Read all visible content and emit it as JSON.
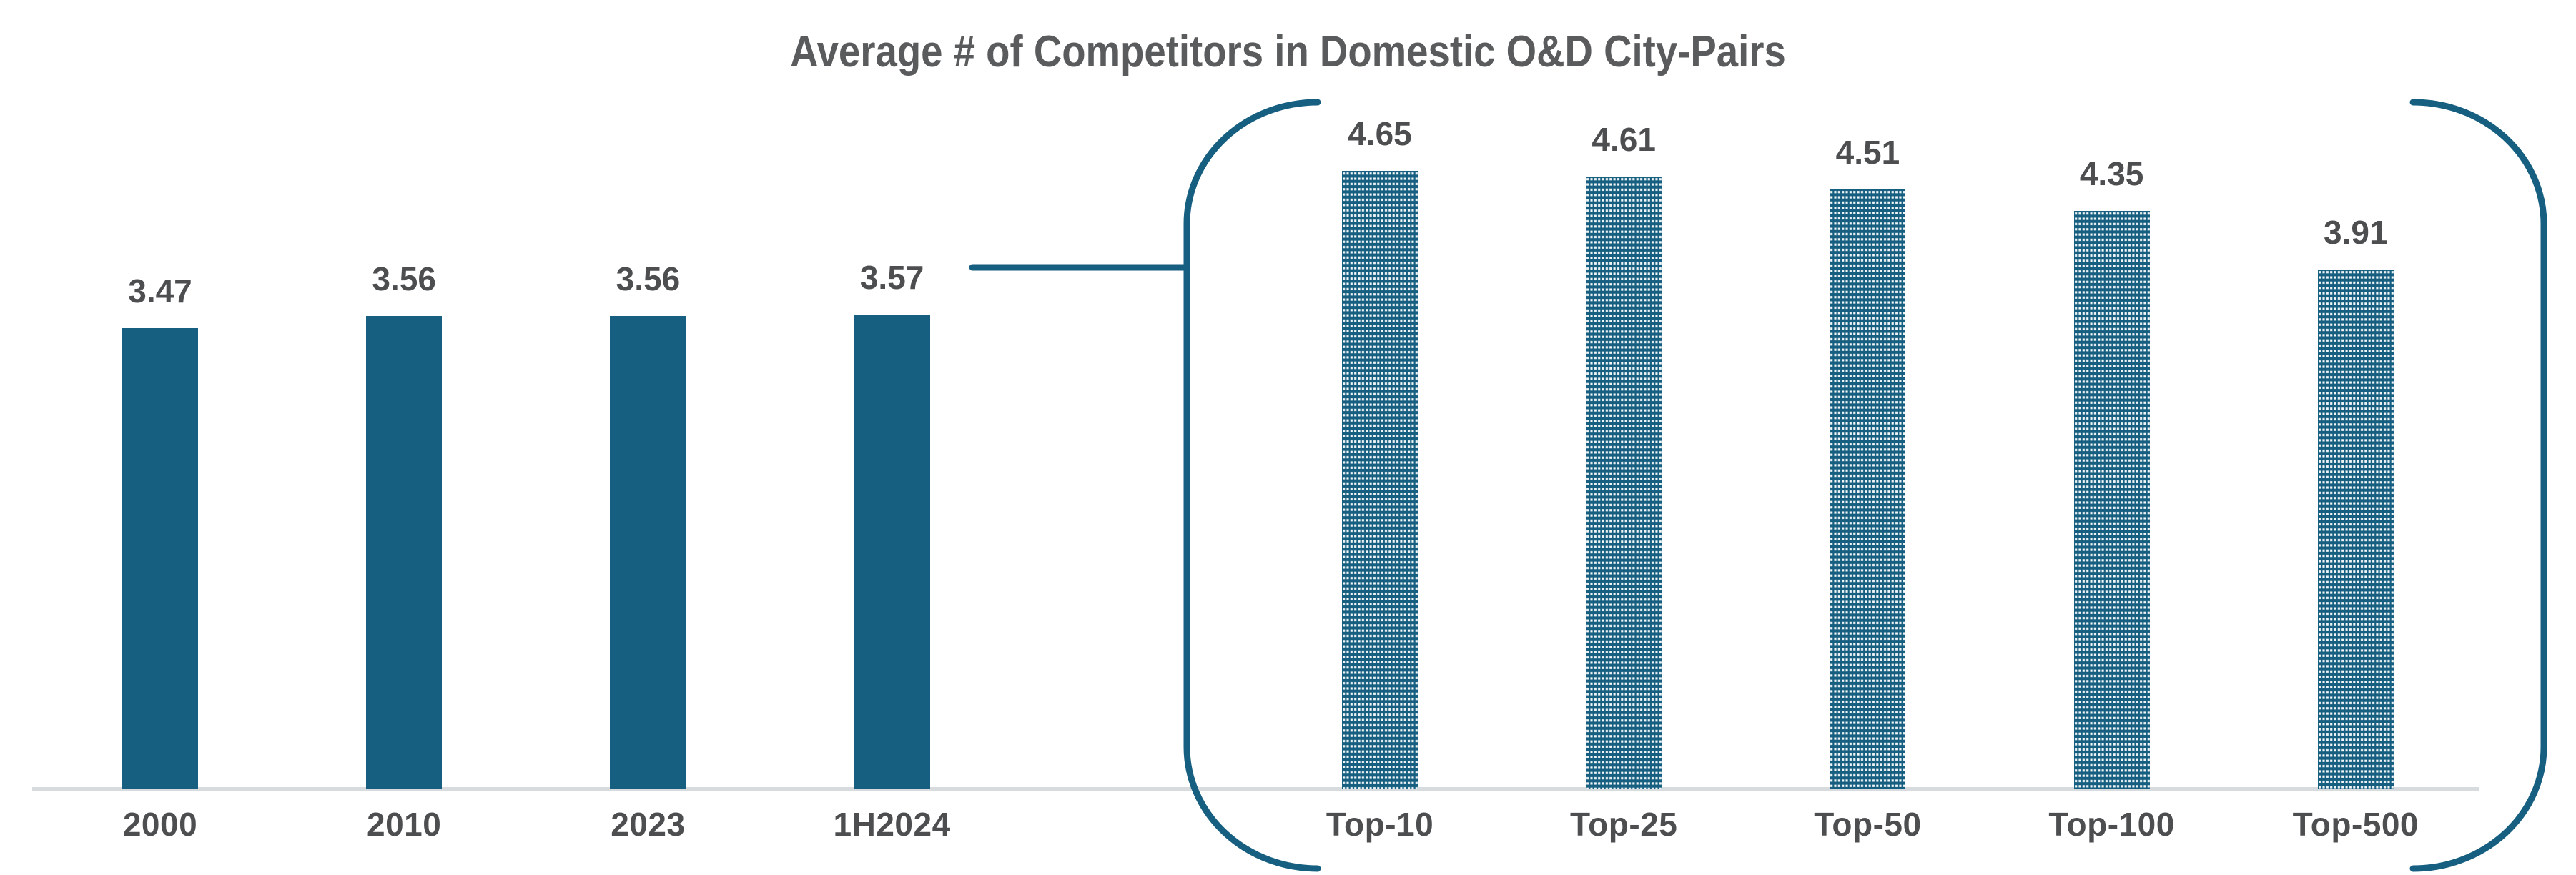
{
  "chart_data": {
    "type": "bar",
    "title": "Average # of Competitors in Domestic O&D City-Pairs",
    "bars": [
      {
        "label": "2000",
        "value": 3.47,
        "value_label": "3.47",
        "group": "by-year",
        "fill": "solid",
        "slot": 0
      },
      {
        "label": "2010",
        "value": 3.56,
        "value_label": "3.56",
        "group": "by-year",
        "fill": "solid",
        "slot": 1
      },
      {
        "label": "2023",
        "value": 3.56,
        "value_label": "3.56",
        "group": "by-year",
        "fill": "solid",
        "slot": 2
      },
      {
        "label": "1H2024",
        "value": 3.57,
        "value_label": "3.57",
        "group": "by-year",
        "fill": "solid",
        "slot": 3
      },
      {
        "label": "Top-10",
        "value": 4.65,
        "value_label": "4.65",
        "group": "top-markets",
        "fill": "dotted",
        "slot": 5
      },
      {
        "label": "Top-25",
        "value": 4.61,
        "value_label": "4.61",
        "group": "top-markets",
        "fill": "dotted",
        "slot": 6
      },
      {
        "label": "Top-50",
        "value": 4.51,
        "value_label": "4.51",
        "group": "top-markets",
        "fill": "dotted",
        "slot": 7
      },
      {
        "label": "Top-100",
        "value": 4.35,
        "value_label": "4.35",
        "group": "top-markets",
        "fill": "dotted",
        "slot": 8
      },
      {
        "label": "Top-500",
        "value": 3.91,
        "value_label": "3.91",
        "group": "top-markets",
        "fill": "dotted",
        "slot": 9
      }
    ],
    "ylim": [
      0,
      5.8
    ],
    "grid": false,
    "legend": false,
    "value_labels_shown": true,
    "annotation": {
      "shape": "side-bracket-parentheses",
      "encloses": [
        "Top-10",
        "Top-25",
        "Top-50",
        "Top-100",
        "Top-500"
      ],
      "connector_from": "1H2024"
    },
    "colors": {
      "bar": "#175F80",
      "bracket": "#175F80",
      "axis_line": "#D8DBDD",
      "title": "#595B5D",
      "label": "#4C4E50",
      "background": "#FFFFFF"
    }
  }
}
